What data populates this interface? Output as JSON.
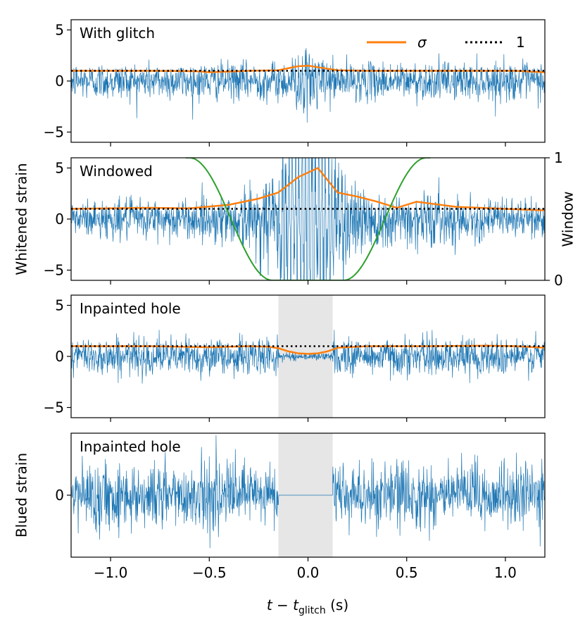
{
  "figure": {
    "xlabel_main": "t − t",
    "xlabel_sub": "glitch",
    "xlabel_unit": " (s)",
    "ylabel_left_top": "Whitened strain",
    "ylabel_left_bottom": "Blued strain",
    "ylabel_right": "Window",
    "legend": [
      {
        "label": "σ",
        "style": "solid",
        "color": "#ff7f0e"
      },
      {
        "label": "1",
        "style": "dotted",
        "color": "#000000"
      }
    ]
  },
  "colors": {
    "strain": "#1f77b4",
    "sigma": "#ff7f0e",
    "window": "#2ca02c",
    "hole": "#e6e6e6",
    "reference": "#000000"
  },
  "chart_data": [
    {
      "type": "line",
      "panel_title": "With glitch",
      "xlim": [
        -1.2,
        1.2
      ],
      "ylim": [
        -6,
        6
      ],
      "xticks": [
        -1.0,
        -0.5,
        0.0,
        0.5,
        1.0
      ],
      "xtick_labels": [
        "−1.0",
        "−0.5",
        "0.0",
        "0.5",
        "1.0"
      ],
      "yticks": [
        -5,
        0,
        5
      ],
      "ytick_labels": [
        "−5",
        "0",
        "5"
      ],
      "series": [
        {
          "name": "σ",
          "x": [
            -1.2,
            -0.8,
            -0.55,
            -0.5,
            -0.3,
            -0.15,
            -0.05,
            0.0,
            0.05,
            0.15,
            0.3,
            0.6,
            0.9,
            1.05,
            1.2
          ],
          "y": [
            1.0,
            1.0,
            0.95,
            0.85,
            1.0,
            1.05,
            1.45,
            1.5,
            1.35,
            1.05,
            1.0,
            1.0,
            1.0,
            1.0,
            0.85
          ]
        },
        {
          "name": "1",
          "x": [
            -1.2,
            1.2
          ],
          "y": [
            1,
            1
          ]
        }
      ],
      "strain": {
        "noise_sd": 0.9,
        "glitch_amp": 1.6,
        "glitch_center": 0.0,
        "glitch_width": 0.05
      }
    },
    {
      "type": "line",
      "panel_title": "Windowed",
      "xlim": [
        -1.2,
        1.2
      ],
      "ylim": [
        -6,
        6
      ],
      "right_ylim": [
        0,
        1
      ],
      "right_yticks": [
        0,
        1
      ],
      "right_ytick_labels": [
        "0",
        "1"
      ],
      "xticks": [
        -1.0,
        -0.5,
        0.0,
        0.5,
        1.0
      ],
      "yticks": [
        -5,
        0,
        5
      ],
      "ytick_labels": [
        "−5",
        "0",
        "5"
      ],
      "series": [
        {
          "name": "σ",
          "x": [
            -1.2,
            -0.8,
            -0.6,
            -0.4,
            -0.25,
            -0.15,
            -0.05,
            0.05,
            0.15,
            0.25,
            0.35,
            0.45,
            0.55,
            0.75,
            1.0,
            1.2
          ],
          "y": [
            1.0,
            1.1,
            1.05,
            1.4,
            2.0,
            2.6,
            4.1,
            5.0,
            2.6,
            2.2,
            1.7,
            1.1,
            1.7,
            1.2,
            1.0,
            0.85
          ]
        },
        {
          "name": "1",
          "x": [
            -1.2,
            1.2
          ],
          "y": [
            1,
            1
          ]
        },
        {
          "name": "window",
          "x": [
            -0.6,
            -0.4,
            -0.2,
            -0.1,
            0.0,
            0.1,
            0.2,
            0.4,
            0.6
          ],
          "y": [
            1.0,
            0.5,
            0.0,
            0.0,
            0.0,
            0.0,
            0.0,
            0.5,
            1.0
          ]
        }
      ],
      "strain": {
        "noise_sd": 0.9,
        "glitch_amp": 9.0,
        "glitch_center": 0.0,
        "glitch_width": 0.14
      }
    },
    {
      "type": "line",
      "panel_title": "Inpainted hole",
      "xlim": [
        -1.2,
        1.2
      ],
      "ylim": [
        -6,
        6
      ],
      "hole": [
        -0.15,
        0.125
      ],
      "xticks": [
        -1.0,
        -0.5,
        0.0,
        0.5,
        1.0
      ],
      "yticks": [
        -5,
        0,
        5
      ],
      "ytick_labels": [
        "−5",
        "0",
        "5"
      ],
      "series": [
        {
          "name": "σ",
          "x": [
            -1.2,
            -0.8,
            -0.5,
            -0.3,
            -0.2,
            -0.15,
            -0.1,
            -0.05,
            0.0,
            0.05,
            0.1,
            0.15,
            0.3,
            0.6,
            0.9,
            1.05,
            1.2
          ],
          "y": [
            1.0,
            1.0,
            0.9,
            1.0,
            0.95,
            0.8,
            0.5,
            0.3,
            0.25,
            0.3,
            0.5,
            0.85,
            1.0,
            1.0,
            1.05,
            1.0,
            0.85
          ]
        },
        {
          "name": "1",
          "x": [
            -1.2,
            1.2
          ],
          "y": [
            1,
            1
          ]
        }
      ],
      "strain": {
        "noise_sd": 0.9,
        "hole_sd": 0.2
      }
    },
    {
      "type": "line",
      "panel_title": "Inpainted hole",
      "xlim": [
        -1.2,
        1.2
      ],
      "ylim": [
        -6,
        6
      ],
      "hole": [
        -0.15,
        0.125
      ],
      "xticks": [
        -1.0,
        -0.5,
        0.0,
        0.5,
        1.0
      ],
      "xtick_labels": [
        "−1.0",
        "−0.5",
        "0.0",
        "0.5",
        "1.0"
      ],
      "yticks": [
        0
      ],
      "ytick_labels": [
        "0"
      ],
      "series": [],
      "strain": {
        "noise_sd": 1.6,
        "hole_sd": 0.0
      }
    }
  ]
}
